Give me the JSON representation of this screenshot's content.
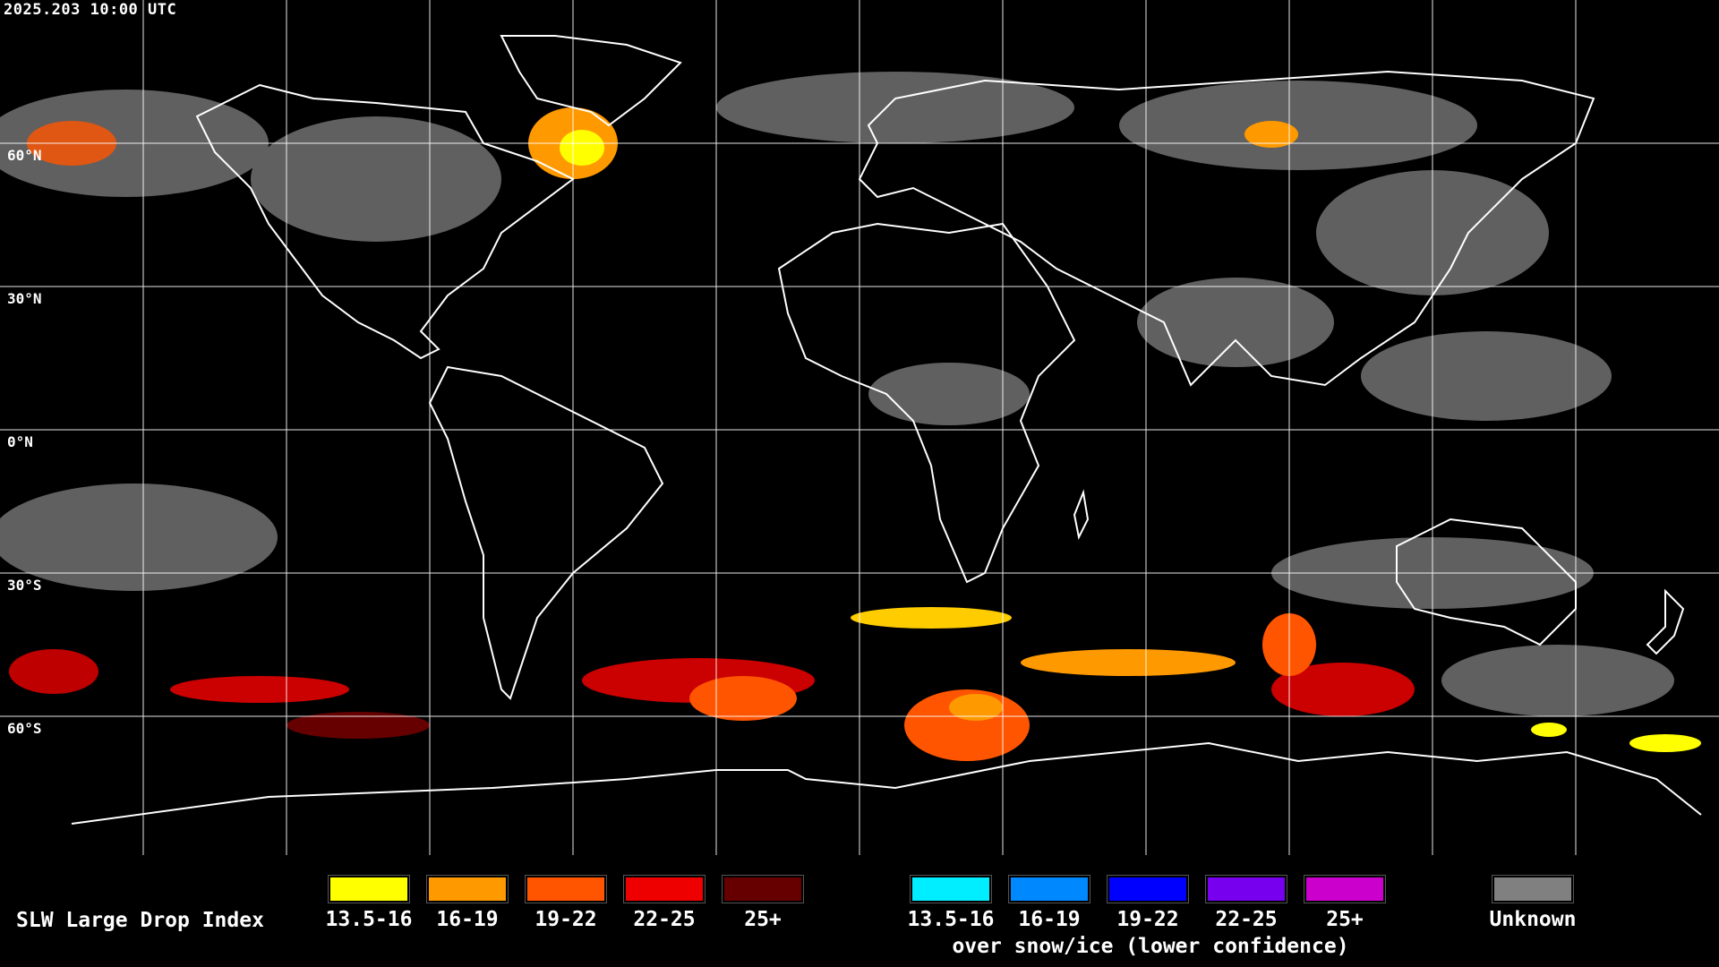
{
  "timestamp": "2025.203 10:00 UTC",
  "lat_labels": [
    "60°N",
    "30°N",
    "0°N",
    "30°S",
    "60°S"
  ],
  "legend": {
    "title": "SLW Large Drop Index",
    "normal": [
      {
        "label": "13.5-16",
        "color": "#ffff00"
      },
      {
        "label": "16-19",
        "color": "#ff9900"
      },
      {
        "label": "19-22",
        "color": "#ff5500"
      },
      {
        "label": "22-25",
        "color": "#ee0000"
      },
      {
        "label": "25+",
        "color": "#660000"
      }
    ],
    "snow": [
      {
        "label": "13.5-16",
        "color": "#00eeff"
      },
      {
        "label": "16-19",
        "color": "#0088ff"
      },
      {
        "label": "19-22",
        "color": "#0000ff"
      },
      {
        "label": "22-25",
        "color": "#7700ee"
      },
      {
        "label": "25+",
        "color": "#cc00cc"
      }
    ],
    "snow_note": "over snow/ice (lower confidence)",
    "unknown": {
      "label": "Unknown",
      "color": "#808080"
    }
  },
  "colors": {
    "background": "#000000",
    "coastline": "#ffffff",
    "grid": "#ffffff",
    "cloud_unknown": "#808080"
  }
}
